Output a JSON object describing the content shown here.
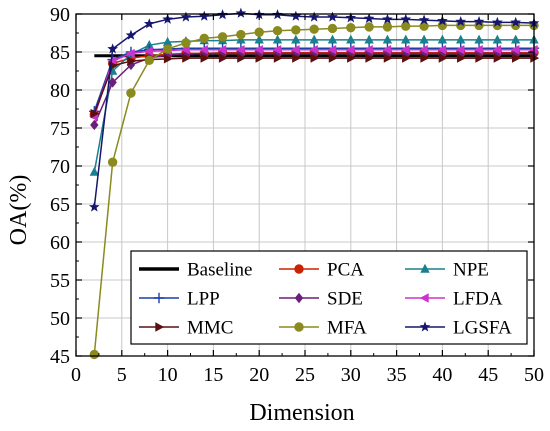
{
  "chart_data": {
    "type": "line",
    "xlabel": "Dimension",
    "ylabel": "OA(%)",
    "xlim": [
      0,
      50
    ],
    "ylim": [
      45,
      90
    ],
    "xticks": [
      0,
      5,
      10,
      15,
      20,
      25,
      30,
      35,
      40,
      45,
      50
    ],
    "yticks": [
      45,
      50,
      55,
      60,
      65,
      70,
      75,
      80,
      85,
      90
    ],
    "grid": true,
    "legend_position": "bottom",
    "series": [
      {
        "name": "Baseline",
        "color": "#000000",
        "marker": "none",
        "x": [
          2,
          50
        ],
        "y": [
          84.5,
          84.5
        ]
      },
      {
        "name": "PCA",
        "color": "#cc2200",
        "marker": "circle",
        "x": [
          2,
          4,
          6,
          8,
          10,
          12,
          14,
          16,
          18,
          20,
          22,
          24,
          26,
          28,
          30,
          32,
          34,
          36,
          38,
          40,
          42,
          44,
          46,
          48,
          50
        ],
        "y": [
          76.8,
          83.5,
          84.2,
          84.5,
          84.7,
          84.8,
          84.8,
          84.9,
          84.9,
          84.9,
          84.9,
          84.9,
          84.9,
          84.9,
          84.9,
          84.9,
          84.9,
          84.9,
          84.9,
          84.9,
          84.9,
          84.9,
          84.9,
          84.9,
          84.9
        ]
      },
      {
        "name": "NPE",
        "color": "#1a7f8e",
        "marker": "triangle",
        "x": [
          2,
          4,
          6,
          8,
          10,
          12,
          14,
          16,
          18,
          20,
          22,
          24,
          26,
          28,
          30,
          32,
          34,
          36,
          38,
          40,
          42,
          44,
          46,
          48,
          50
        ],
        "y": [
          69.2,
          82.5,
          84.7,
          85.9,
          86.3,
          86.4,
          86.5,
          86.5,
          86.6,
          86.6,
          86.6,
          86.6,
          86.6,
          86.6,
          86.6,
          86.6,
          86.6,
          86.6,
          86.6,
          86.6,
          86.6,
          86.6,
          86.6,
          86.6,
          86.6
        ]
      },
      {
        "name": "LPP",
        "color": "#1f3fa8",
        "marker": "plus",
        "x": [
          2,
          4,
          6,
          8,
          10,
          12,
          14,
          16,
          18,
          20,
          22,
          24,
          26,
          28,
          30,
          32,
          34,
          36,
          38,
          40,
          42,
          44,
          46,
          48,
          50
        ],
        "y": [
          77.2,
          84.0,
          85.0,
          85.3,
          85.4,
          85.5,
          85.5,
          85.5,
          85.5,
          85.5,
          85.5,
          85.5,
          85.5,
          85.5,
          85.5,
          85.5,
          85.5,
          85.5,
          85.5,
          85.5,
          85.5,
          85.5,
          85.5,
          85.5,
          85.5
        ]
      },
      {
        "name": "SDE",
        "color": "#6b1e7a",
        "marker": "diamond",
        "x": [
          2,
          4,
          6,
          8,
          10,
          12,
          14,
          16,
          18,
          20,
          22,
          24,
          26,
          28,
          30,
          32,
          34,
          36,
          38,
          40,
          42,
          44,
          46,
          48,
          50
        ],
        "y": [
          75.4,
          81.0,
          83.3,
          84.2,
          84.6,
          84.7,
          84.8,
          84.8,
          84.8,
          84.8,
          84.8,
          84.8,
          84.8,
          84.8,
          84.8,
          84.8,
          84.8,
          84.8,
          84.8,
          84.8,
          84.8,
          84.8,
          84.8,
          84.8,
          84.8
        ]
      },
      {
        "name": "LFDA",
        "color": "#cc33cc",
        "marker": "triangle-left",
        "x": [
          2,
          4,
          6,
          8,
          10,
          12,
          14,
          16,
          18,
          20,
          22,
          24,
          26,
          28,
          30,
          32,
          34,
          36,
          38,
          40,
          42,
          44,
          46,
          48,
          50
        ],
        "y": [
          76.5,
          83.8,
          84.8,
          85.1,
          85.2,
          85.3,
          85.3,
          85.3,
          85.3,
          85.3,
          85.3,
          85.3,
          85.3,
          85.3,
          85.3,
          85.3,
          85.3,
          85.3,
          85.3,
          85.3,
          85.3,
          85.3,
          85.3,
          85.3,
          85.3
        ]
      },
      {
        "name": "MMC",
        "color": "#5a1010",
        "marker": "triangle-right",
        "x": [
          2,
          4,
          6,
          8,
          10,
          12,
          14,
          16,
          18,
          20,
          22,
          24,
          26,
          28,
          30,
          32,
          34,
          36,
          38,
          40,
          42,
          44,
          46,
          48,
          50
        ],
        "y": [
          76.9,
          83.2,
          83.8,
          84.0,
          84.1,
          84.2,
          84.2,
          84.2,
          84.2,
          84.2,
          84.2,
          84.2,
          84.2,
          84.2,
          84.2,
          84.2,
          84.2,
          84.2,
          84.2,
          84.2,
          84.2,
          84.2,
          84.2,
          84.2,
          84.2
        ]
      },
      {
        "name": "MFA",
        "color": "#8a8a1e",
        "marker": "circle",
        "x": [
          2,
          4,
          6,
          8,
          10,
          12,
          14,
          16,
          18,
          20,
          22,
          24,
          26,
          28,
          30,
          32,
          34,
          36,
          38,
          40,
          42,
          44,
          46,
          48,
          50
        ],
        "y": [
          45.2,
          70.5,
          79.6,
          83.9,
          85.4,
          86.2,
          86.8,
          87.0,
          87.3,
          87.6,
          87.8,
          87.9,
          88.0,
          88.1,
          88.2,
          88.3,
          88.3,
          88.4,
          88.4,
          88.5,
          88.5,
          88.5,
          88.5,
          88.5,
          88.5
        ]
      },
      {
        "name": "LGSFA",
        "color": "#16166e",
        "marker": "star",
        "x": [
          2,
          4,
          6,
          8,
          10,
          12,
          14,
          16,
          18,
          20,
          22,
          24,
          26,
          28,
          30,
          32,
          34,
          36,
          38,
          40,
          42,
          44,
          46,
          48,
          50
        ],
        "y": [
          64.6,
          85.4,
          87.2,
          88.7,
          89.3,
          89.6,
          89.7,
          89.9,
          90.1,
          89.9,
          89.9,
          89.7,
          89.6,
          89.6,
          89.5,
          89.4,
          89.3,
          89.3,
          89.2,
          89.1,
          89.0,
          89.0,
          88.9,
          88.9,
          88.8
        ]
      }
    ],
    "legend_order": [
      "Baseline",
      "PCA",
      "NPE",
      "LPP",
      "SDE",
      "LFDA",
      "MMC",
      "MFA",
      "LGSFA"
    ]
  }
}
